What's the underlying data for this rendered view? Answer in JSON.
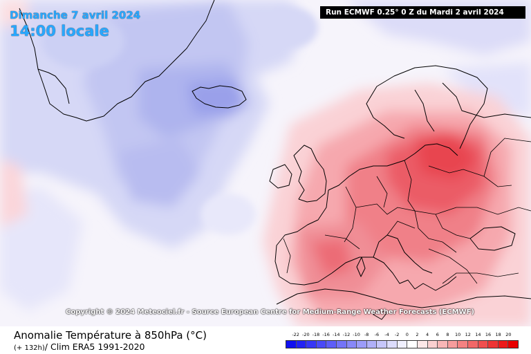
{
  "header": {
    "date": "Dimanche 7 avril 2024",
    "local_time": "14:00 locale",
    "run": "Run ECMWF 0.25° 0 Z du Mardi 2 avril 2024"
  },
  "copyright": "Copyright © 2024 Meteociel.fr - Source European Centre for Medium-Range Weather Forecasts (ECMWF)",
  "footer": {
    "title": "Anomalie Température à 850hPa (°C)",
    "lead": "(+ 132h)",
    "clim": "/ Clim ERA5 1991-2020"
  },
  "legend": {
    "labels": [
      "-22",
      "-20",
      "-18",
      "-16",
      "-14",
      "-12",
      "-10",
      "-8",
      "-6",
      "-4",
      "-2",
      "0",
      "2",
      "4",
      "6",
      "8",
      "10",
      "12",
      "14",
      "16",
      "18",
      "20"
    ],
    "colors": [
      "#1010f0",
      "#2222f4",
      "#3636f6",
      "#4a4af8",
      "#5e5ef8",
      "#7474f8",
      "#8888f8",
      "#9c9cf8",
      "#b0b0f8",
      "#c6c6fa",
      "#dcdcfc",
      "#f0f0fe",
      "#ffffff",
      "#fde8e8",
      "#fbd0d0",
      "#f8b6b6",
      "#f69c9c",
      "#f48282",
      "#f26868",
      "#f04e4e",
      "#ee3434",
      "#ec1a1a",
      "#e80000"
    ]
  }
}
